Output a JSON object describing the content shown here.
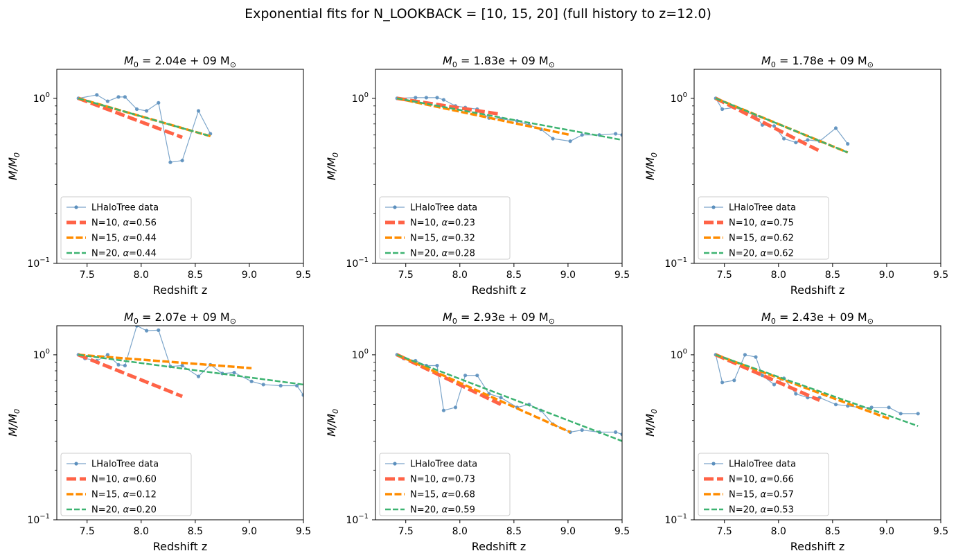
{
  "figure": {
    "suptitle": "Exponential fits for N_LOOKBACK = [10, 15, 20] (full history to z=12.0)"
  },
  "colors": {
    "data": "#5b8fbd",
    "N10": "#ff6347",
    "N15": "#ff8c00",
    "N20": "#3cb371"
  },
  "chart_data": [
    {
      "type": "line",
      "title_prefix": "M",
      "title_sub": "0",
      "title_value": " = 2.04e + 09 M",
      "title_sun": "⊙",
      "xlabel": "Redshift z",
      "ylabel": "M/M",
      "ylabel_sub": "0",
      "xlim": [
        7.22,
        9.5
      ],
      "ylim": [
        0.1,
        1.5
      ],
      "yscale": "log",
      "xticks": [
        7.5,
        8.0,
        8.5,
        9.0,
        9.5
      ],
      "xtick_labels": [
        "7.5",
        "8.0",
        "8.5",
        "9.0",
        "9.5"
      ],
      "yticks": [
        {
          "value": 1.0,
          "base": "10",
          "exp": "0"
        },
        {
          "value": 0.1,
          "base": "10",
          "exp": "−1"
        }
      ],
      "legend_position": "lower-left",
      "series": [
        {
          "name": "LHaloTree data",
          "kind": "data",
          "x": [
            7.42,
            7.59,
            7.69,
            7.79,
            7.85,
            7.96,
            8.05,
            8.16,
            8.27,
            8.38,
            8.53,
            8.64
          ],
          "y": [
            1.0,
            1.05,
            0.96,
            1.02,
            1.02,
            0.86,
            0.84,
            0.94,
            0.41,
            0.42,
            0.84,
            0.61
          ]
        },
        {
          "name": "N=10, α=0.56",
          "kind": "N10",
          "label_pre": "N=10, ",
          "alpha_value": "=0.56",
          "x": [
            7.42,
            8.38
          ],
          "y": [
            1.0,
            0.58
          ]
        },
        {
          "name": "N=15, α=0.44",
          "kind": "N15",
          "label_pre": "N=15, ",
          "alpha_value": "=0.44",
          "x": [
            7.42,
            8.64
          ],
          "y": [
            1.0,
            0.59
          ]
        },
        {
          "name": "N=20, α=0.44",
          "kind": "N20",
          "label_pre": "N=20, ",
          "alpha_value": "=0.44",
          "x": [
            7.42,
            8.64
          ],
          "y": [
            1.0,
            0.59
          ]
        }
      ]
    },
    {
      "type": "line",
      "title_prefix": "M",
      "title_sub": "0",
      "title_value": " = 1.83e + 09 M",
      "title_sun": "⊙",
      "xlabel": "Redshift z",
      "ylabel": "M/M",
      "ylabel_sub": "0",
      "xlim": [
        7.22,
        9.5
      ],
      "ylim": [
        0.1,
        1.5
      ],
      "yscale": "log",
      "xticks": [
        7.5,
        8.0,
        8.5,
        9.0,
        9.5
      ],
      "xtick_labels": [
        "7.5",
        "8.0",
        "8.5",
        "9.0",
        "9.5"
      ],
      "yticks": [
        {
          "value": 1.0,
          "base": "10",
          "exp": "0"
        },
        {
          "value": 0.1,
          "base": "10",
          "exp": "−1"
        }
      ],
      "legend_position": "lower-left",
      "series": [
        {
          "name": "LHaloTree data",
          "kind": "data",
          "x": [
            7.42,
            7.59,
            7.69,
            7.79,
            7.85,
            7.96,
            8.05,
            8.16,
            8.27,
            8.38,
            8.53,
            8.64,
            8.75,
            8.86,
            9.02,
            9.13,
            9.29,
            9.44,
            9.5
          ],
          "y": [
            1.0,
            1.01,
            1.01,
            1.01,
            0.98,
            0.9,
            0.88,
            0.86,
            0.76,
            0.75,
            0.73,
            0.69,
            0.65,
            0.57,
            0.55,
            0.6,
            0.6,
            0.61,
            0.6
          ]
        },
        {
          "name": "N=10, α=0.23",
          "kind": "N10",
          "label_pre": "N=10, ",
          "alpha_value": "=0.23",
          "x": [
            7.42,
            8.38
          ],
          "y": [
            1.0,
            0.8
          ]
        },
        {
          "name": "N=15, α=0.32",
          "kind": "N15",
          "label_pre": "N=15, ",
          "alpha_value": "=0.32",
          "x": [
            7.42,
            9.02
          ],
          "y": [
            1.0,
            0.6
          ]
        },
        {
          "name": "N=20, α=0.28",
          "kind": "N20",
          "label_pre": "N=20, ",
          "alpha_value": "=0.28",
          "x": [
            7.42,
            9.5
          ],
          "y": [
            1.0,
            0.56
          ]
        }
      ]
    },
    {
      "type": "line",
      "title_prefix": "M",
      "title_sub": "0",
      "title_value": " = 1.78e + 09 M",
      "title_sun": "⊙",
      "xlabel": "Redshift z",
      "ylabel": "M/M",
      "ylabel_sub": "0",
      "xlim": [
        7.22,
        9.5
      ],
      "ylim": [
        0.1,
        1.5
      ],
      "yscale": "log",
      "xticks": [
        7.5,
        8.0,
        8.5,
        9.0,
        9.5
      ],
      "xtick_labels": [
        "7.5",
        "8.0",
        "8.5",
        "9.0",
        "9.5"
      ],
      "yticks": [
        {
          "value": 1.0,
          "base": "10",
          "exp": "0"
        },
        {
          "value": 0.1,
          "base": "10",
          "exp": "−1"
        }
      ],
      "legend_position": "lower-left",
      "series": [
        {
          "name": "LHaloTree data",
          "kind": "data",
          "x": [
            7.42,
            7.48,
            7.59,
            7.69,
            7.79,
            7.85,
            7.96,
            8.05,
            8.16,
            8.27,
            8.38,
            8.53,
            8.64
          ],
          "y": [
            1.0,
            0.86,
            0.88,
            0.84,
            0.78,
            0.69,
            0.68,
            0.57,
            0.54,
            0.56,
            0.55,
            0.66,
            0.53
          ]
        },
        {
          "name": "N=10, α=0.75",
          "kind": "N10",
          "label_pre": "N=10, ",
          "alpha_value": "=0.75",
          "x": [
            7.42,
            8.38
          ],
          "y": [
            1.0,
            0.48
          ]
        },
        {
          "name": "N=15, α=0.62",
          "kind": "N15",
          "label_pre": "N=15, ",
          "alpha_value": "=0.62",
          "x": [
            7.42,
            8.64
          ],
          "y": [
            1.0,
            0.47
          ]
        },
        {
          "name": "N=20, α=0.62",
          "kind": "N20",
          "label_pre": "N=20, ",
          "alpha_value": "=0.62",
          "x": [
            7.42,
            8.64
          ],
          "y": [
            1.0,
            0.47
          ]
        }
      ]
    },
    {
      "type": "line",
      "title_prefix": "M",
      "title_sub": "0",
      "title_value": " = 2.07e + 09 M",
      "title_sun": "⊙",
      "xlabel": "Redshift z",
      "ylabel": "M/M",
      "ylabel_sub": "0",
      "xlim": [
        7.22,
        9.5
      ],
      "ylim": [
        0.1,
        1.5
      ],
      "yscale": "log",
      "xticks": [
        7.5,
        8.0,
        8.5,
        9.0,
        9.5
      ],
      "xtick_labels": [
        "7.5",
        "8.0",
        "8.5",
        "9.0",
        "9.5"
      ],
      "yticks": [
        {
          "value": 1.0,
          "base": "10",
          "exp": "0"
        },
        {
          "value": 0.1,
          "base": "10",
          "exp": "−1"
        }
      ],
      "legend_position": "lower-left",
      "series": [
        {
          "name": "LHaloTree data",
          "kind": "data",
          "x": [
            7.42,
            7.48,
            7.59,
            7.69,
            7.79,
            7.85,
            7.96,
            8.05,
            8.16,
            8.27,
            8.38,
            8.53,
            8.64,
            8.75,
            8.86,
            9.02,
            9.13,
            9.29,
            9.44,
            9.5
          ],
          "y": [
            1.0,
            0.95,
            0.92,
            1.0,
            0.87,
            0.86,
            1.5,
            1.4,
            1.41,
            0.85,
            0.86,
            0.74,
            0.87,
            0.77,
            0.78,
            0.69,
            0.66,
            0.65,
            0.65,
            0.57
          ]
        },
        {
          "name": "N=10, α=0.60",
          "kind": "N10",
          "label_pre": "N=10, ",
          "alpha_value": "=0.60",
          "x": [
            7.42,
            8.38
          ],
          "y": [
            1.0,
            0.56
          ]
        },
        {
          "name": "N=15, α=0.12",
          "kind": "N15",
          "label_pre": "N=15, ",
          "alpha_value": "=0.12",
          "x": [
            7.42,
            9.02
          ],
          "y": [
            1.0,
            0.83
          ]
        },
        {
          "name": "N=20, α=0.20",
          "kind": "N20",
          "label_pre": "N=20, ",
          "alpha_value": "=0.20",
          "x": [
            7.42,
            9.5
          ],
          "y": [
            1.0,
            0.66
          ]
        }
      ]
    },
    {
      "type": "line",
      "title_prefix": "M",
      "title_sub": "0",
      "title_value": " = 2.93e + 09 M",
      "title_sun": "⊙",
      "xlabel": "Redshift z",
      "ylabel": "M/M",
      "ylabel_sub": "0",
      "xlim": [
        7.22,
        9.5
      ],
      "ylim": [
        0.1,
        1.5
      ],
      "yscale": "log",
      "xticks": [
        7.5,
        8.0,
        8.5,
        9.0,
        9.5
      ],
      "xtick_labels": [
        "7.5",
        "8.0",
        "8.5",
        "9.0",
        "9.5"
      ],
      "yticks": [
        {
          "value": 1.0,
          "base": "10",
          "exp": "0"
        },
        {
          "value": 0.1,
          "base": "10",
          "exp": "−1"
        }
      ],
      "legend_position": "lower-left",
      "series": [
        {
          "name": "LHaloTree data",
          "kind": "data",
          "x": [
            7.42,
            7.48,
            7.59,
            7.69,
            7.79,
            7.85,
            7.96,
            8.05,
            8.16,
            8.27,
            8.38,
            8.53,
            8.64,
            8.75,
            8.86,
            9.02,
            9.13,
            9.29,
            9.44,
            9.5
          ],
          "y": [
            1.0,
            0.95,
            0.92,
            0.86,
            0.86,
            0.46,
            0.48,
            0.75,
            0.75,
            0.58,
            0.55,
            0.48,
            0.5,
            0.46,
            0.38,
            0.34,
            0.35,
            0.34,
            0.34,
            0.33
          ]
        },
        {
          "name": "N=10, α=0.73",
          "kind": "N10",
          "label_pre": "N=10, ",
          "alpha_value": "=0.73",
          "x": [
            7.42,
            8.38
          ],
          "y": [
            1.0,
            0.5
          ]
        },
        {
          "name": "N=15, α=0.68",
          "kind": "N15",
          "label_pre": "N=15, ",
          "alpha_value": "=0.68",
          "x": [
            7.42,
            9.02
          ],
          "y": [
            1.0,
            0.34
          ]
        },
        {
          "name": "N=20, α=0.59",
          "kind": "N20",
          "label_pre": "N=20, ",
          "alpha_value": "=0.59",
          "x": [
            7.42,
            9.5
          ],
          "y": [
            1.0,
            0.3
          ]
        }
      ]
    },
    {
      "type": "line",
      "title_prefix": "M",
      "title_sub": "0",
      "title_value": " = 2.43e + 09 M",
      "title_sun": "⊙",
      "xlabel": "Redshift z",
      "ylabel": "M/M",
      "ylabel_sub": "0",
      "xlim": [
        7.22,
        9.5
      ],
      "ylim": [
        0.1,
        1.5
      ],
      "yscale": "log",
      "xticks": [
        7.5,
        8.0,
        8.5,
        9.0,
        9.5
      ],
      "xtick_labels": [
        "7.5",
        "8.0",
        "8.5",
        "9.0",
        "9.5"
      ],
      "yticks": [
        {
          "value": 1.0,
          "base": "10",
          "exp": "0"
        },
        {
          "value": 0.1,
          "base": "10",
          "exp": "−1"
        }
      ],
      "legend_position": "lower-left",
      "series": [
        {
          "name": "LHaloTree data",
          "kind": "data",
          "x": [
            7.42,
            7.48,
            7.59,
            7.69,
            7.79,
            7.85,
            7.96,
            8.05,
            8.16,
            8.27,
            8.38,
            8.53,
            8.64,
            8.75,
            8.86,
            9.02,
            9.13,
            9.29
          ],
          "y": [
            1.0,
            0.68,
            0.7,
            1.0,
            0.97,
            0.75,
            0.66,
            0.72,
            0.58,
            0.55,
            0.55,
            0.5,
            0.49,
            0.48,
            0.48,
            0.48,
            0.44,
            0.44
          ]
        },
        {
          "name": "N=10, α=0.66",
          "kind": "N10",
          "label_pre": "N=10, ",
          "alpha_value": "=0.66",
          "x": [
            7.42,
            8.38
          ],
          "y": [
            1.0,
            0.53
          ]
        },
        {
          "name": "N=15, α=0.57",
          "kind": "N15",
          "label_pre": "N=15, ",
          "alpha_value": "=0.57",
          "x": [
            7.42,
            9.02
          ],
          "y": [
            1.0,
            0.41
          ]
        },
        {
          "name": "N=20, α=0.53",
          "kind": "N20",
          "label_pre": "N=20, ",
          "alpha_value": "=0.53",
          "x": [
            7.42,
            9.29
          ],
          "y": [
            1.0,
            0.37
          ]
        }
      ]
    }
  ]
}
